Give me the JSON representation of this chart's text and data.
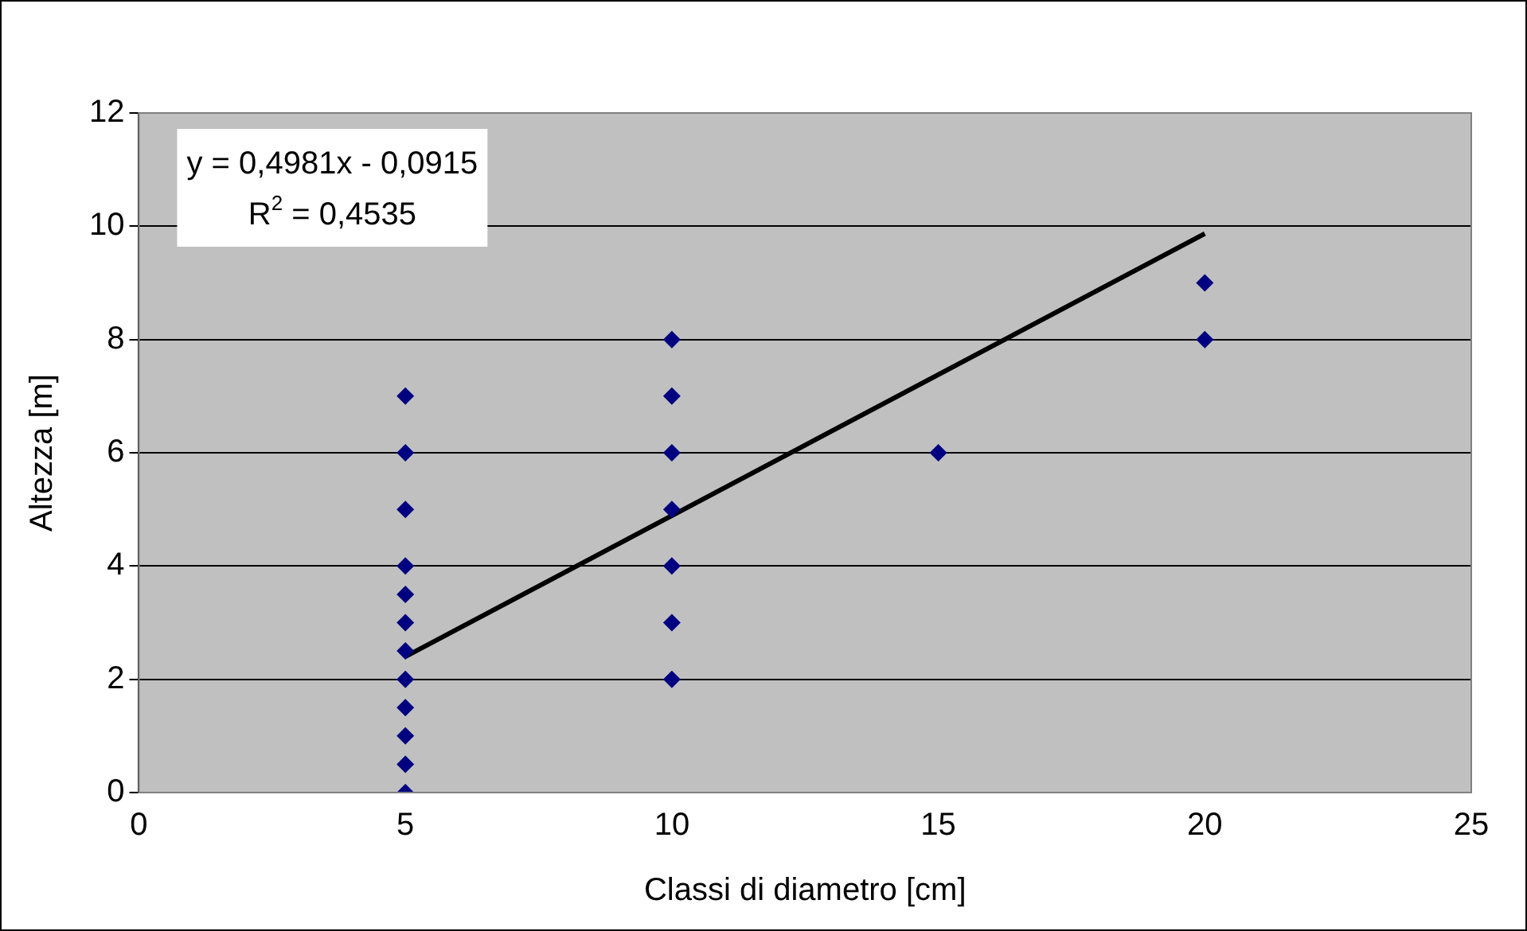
{
  "chart_data": {
    "type": "scatter",
    "xlabel": "Classi di diametro [cm]",
    "ylabel": "Altezza [m]",
    "annotations": [
      "y = 0,4981x - 0,0915",
      "R$^{2}$ = 0,4535"
    ],
    "series": [
      {
        "color": "#000080",
        "x": [
          5,
          5,
          5,
          5,
          5,
          5,
          5,
          5,
          5,
          5,
          5,
          5,
          10,
          10,
          10,
          10,
          10,
          10,
          10,
          15,
          20,
          20
        ],
        "values": [
          0,
          0.5,
          1,
          1.5,
          2,
          2.5,
          3,
          3.5,
          4,
          5,
          6,
          7,
          2,
          3,
          4,
          5,
          6,
          7,
          8,
          6,
          8,
          9
        ]
      },
      {
        "type": "line",
        "color": "#000000",
        "marker": "none",
        "x": [
          5,
          20
        ],
        "values": [
          2.4,
          9.87
        ]
      }
    ],
    "xlim": [
      0,
      25
    ],
    "xticks": [
      0,
      5,
      10,
      15,
      20,
      25
    ],
    "ylim": [
      0,
      12
    ],
    "yticks": [
      0,
      2,
      4,
      6,
      8,
      10,
      12
    ],
    "grid": "y",
    "legend": false,
    "marker": "diamond"
  }
}
